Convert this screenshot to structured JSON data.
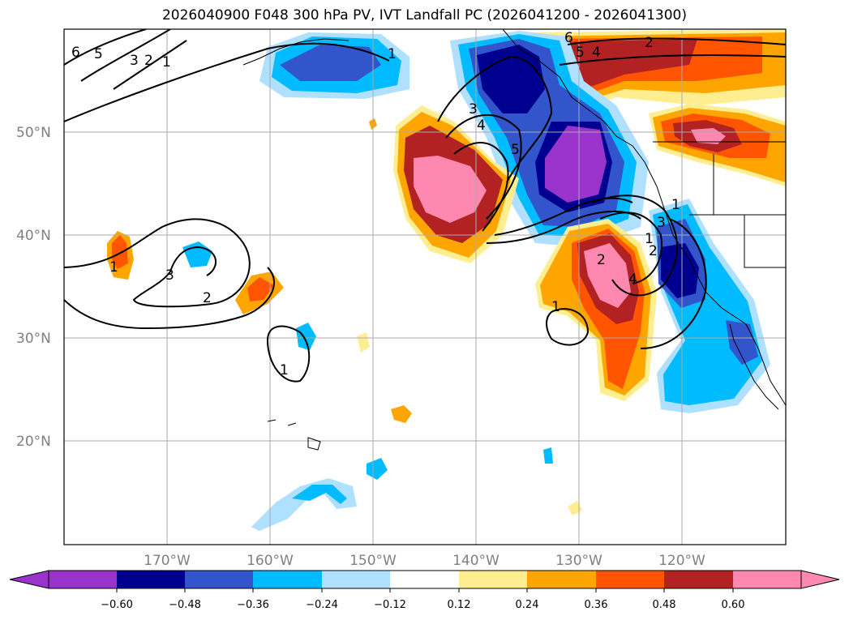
{
  "title": "2026040900 F048 300 hPa PV, IVT Landfall PC (2026041200 - 2026041300)",
  "map": {
    "lon_range": [
      -180,
      -110
    ],
    "lat_range": [
      10,
      60
    ],
    "lat_ticks": [
      {
        "value": 50,
        "label": "50°N"
      },
      {
        "value": 40,
        "label": "40°N"
      },
      {
        "value": 30,
        "label": "30°N"
      },
      {
        "value": 20,
        "label": "20°N"
      }
    ],
    "lon_ticks": [
      {
        "value": -170,
        "label": "170°W"
      },
      {
        "value": -160,
        "label": "160°W"
      },
      {
        "value": -150,
        "label": "150°W"
      },
      {
        "value": -140,
        "label": "140°W"
      },
      {
        "value": -130,
        "label": "130°W"
      },
      {
        "value": -120,
        "label": "120°W"
      }
    ],
    "gridlines": true
  },
  "colorbar": {
    "ticks": [
      "−0.60",
      "−0.48",
      "−0.36",
      "−0.24",
      "−0.12",
      "0.12",
      "0.24",
      "0.36",
      "0.48",
      "0.60"
    ],
    "colors": [
      "#9933cc",
      "#000090",
      "#3355cc",
      "#00bbff",
      "#b0e0ff",
      "#ffffff",
      "#ffee90",
      "#ffa500",
      "#ff5500",
      "#b22222",
      "#ff88b0"
    ],
    "extend": "both"
  },
  "contour_labels": [
    "6",
    "5",
    "3",
    "2",
    "1",
    "1",
    "3",
    "4",
    "5",
    "6",
    "5",
    "4",
    "2",
    "1",
    "3",
    "2",
    "1",
    "1",
    "1",
    "2",
    "4",
    "3",
    "1",
    "2"
  ]
}
